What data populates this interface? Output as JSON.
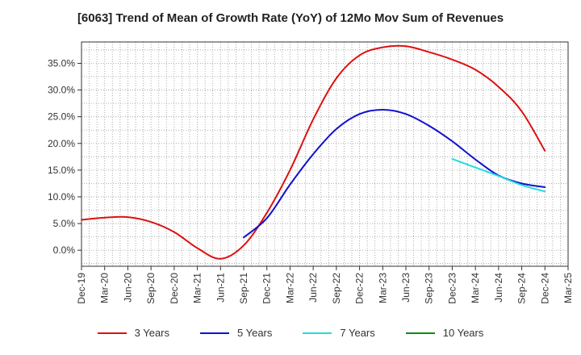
{
  "chart_data": {
    "type": "line",
    "title": "[6063]  Trend of Mean of Growth Rate (YoY) of 12Mo Mov Sum of Revenues",
    "xlabel": "",
    "ylabel": "",
    "x_labels": [
      "Dec-19",
      "Mar-20",
      "Jun-20",
      "Sep-20",
      "Dec-20",
      "Mar-21",
      "Jun-21",
      "Sep-21",
      "Dec-21",
      "Mar-22",
      "Jun-22",
      "Sep-22",
      "Dec-22",
      "Mar-23",
      "Jun-23",
      "Sep-23",
      "Dec-23",
      "Mar-24",
      "Jun-24",
      "Sep-24",
      "Dec-24",
      "Mar-25"
    ],
    "ylim": [
      -3.0,
      39.0
    ],
    "y_ticks": [
      0,
      5,
      10,
      15,
      20,
      25,
      30,
      35
    ],
    "y_tick_labels": [
      "0.0%",
      "5.0%",
      "10.0%",
      "15.0%",
      "20.0%",
      "25.0%",
      "30.0%",
      "35.0%"
    ],
    "grid": true,
    "series": [
      {
        "name": "3 Years",
        "color": "#dd1111",
        "values": [
          5.7,
          6.1,
          6.2,
          5.3,
          3.4,
          0.4,
          -1.6,
          0.9,
          7.0,
          15.0,
          24.5,
          32.2,
          36.5,
          38.0,
          38.2,
          37.1,
          35.7,
          33.8,
          30.6,
          26.0,
          18.6,
          null
        ]
      },
      {
        "name": "5 Years",
        "color": "#1111cc",
        "values": [
          null,
          null,
          null,
          null,
          null,
          null,
          null,
          2.4,
          6.0,
          12.3,
          18.0,
          22.7,
          25.5,
          26.3,
          25.5,
          23.3,
          20.4,
          17.0,
          14.0,
          12.5,
          11.8,
          null
        ]
      },
      {
        "name": "7 Years",
        "color": "#22dddd",
        "values": [
          null,
          null,
          null,
          null,
          null,
          null,
          null,
          null,
          null,
          null,
          null,
          null,
          null,
          null,
          null,
          null,
          17.1,
          15.5,
          13.9,
          12.2,
          11.0,
          null
        ]
      },
      {
        "name": "10 Years",
        "color": "#118811",
        "values": [
          null,
          null,
          null,
          null,
          null,
          null,
          null,
          null,
          null,
          null,
          null,
          null,
          null,
          null,
          null,
          null,
          null,
          null,
          null,
          null,
          null,
          null
        ]
      }
    ]
  }
}
